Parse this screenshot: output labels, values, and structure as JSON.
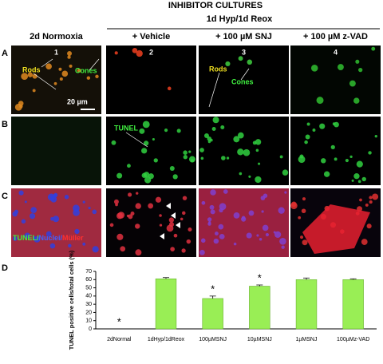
{
  "title": "INHIBITOR CULTURES",
  "condition": "1d Hyp/1d Reox",
  "columns": [
    {
      "label": "2d Normoxia",
      "number": "1"
    },
    {
      "label": "+ Vehicle",
      "number": "2"
    },
    {
      "label": "+ 100 µM SNJ",
      "number": "3"
    },
    {
      "label": "+ 100 µM z-VAD",
      "number": "4"
    }
  ],
  "rows": [
    "A",
    "B",
    "C"
  ],
  "image_labels": {
    "rods_1": "Rods",
    "cones_1": "Cones",
    "scale_bar": "20 µm",
    "rods_3": "Rods",
    "cones_3": "Cones",
    "tunel": "TUNEL",
    "stain_tunel": "TUNEL/",
    "stain_nuclei": "Nuclei/",
    "stain_muller": "Müller"
  },
  "chart_data": {
    "type": "bar",
    "panel": "D",
    "y_label": "TUNEL positive cells/total cells (%)",
    "categories": [
      "2dNormal",
      "1dHyp/1dReox",
      "100µMSNJ",
      "10µMSNJ",
      "1µMSNJ",
      "100µMz-VAD"
    ],
    "values": [
      0,
      61,
      37,
      52,
      60,
      60
    ],
    "errors": [
      0,
      1.5,
      3,
      1.5,
      2,
      1
    ],
    "significance": [
      "*",
      null,
      "*",
      "*",
      null,
      null
    ],
    "color": "#99ee55",
    "ylim": [
      0,
      70
    ],
    "yticks": [
      0,
      10,
      20,
      30,
      40,
      50,
      60,
      70
    ],
    "grid": false
  }
}
